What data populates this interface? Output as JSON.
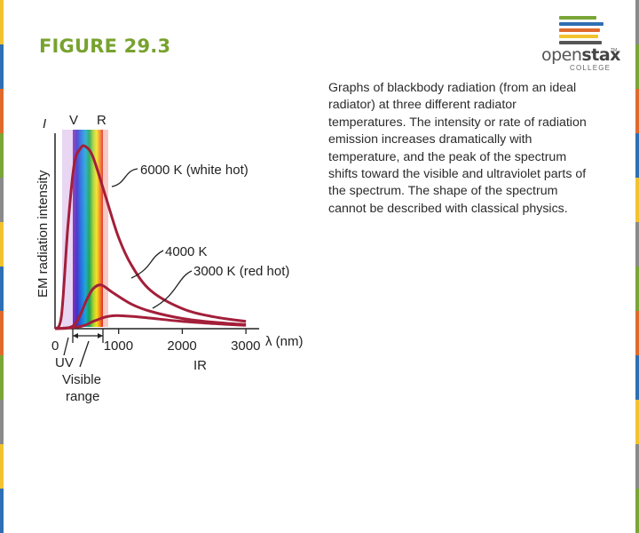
{
  "slide": {
    "title": "FIGURE 29.3",
    "caption": "Graphs of blackbody radiation (from an ideal radiator) at three different radiator temperatures. The intensity or rate of radiation emission increases dramatically with temperature, and the peak of the spectrum shifts toward the visible and ultraviolet parts of the spectrum. The shape of the spectrum cannot be described with classical physics.",
    "logo": {
      "word_regular": "open",
      "word_bold": "stax",
      "tm": "TM",
      "sub": "COLLEGE"
    }
  },
  "colors": {
    "title_green": "#78a22f",
    "curve": "#a31f3a",
    "edge_stripes": [
      "#f2c32e",
      "#2f6fb3",
      "#e06a2c",
      "#7aa637",
      "#8a8a8a"
    ],
    "logo_bars": [
      "#7aa637",
      "#2f6fb3",
      "#e06a2c",
      "#f2c32e",
      "#555555"
    ]
  },
  "chart_data": {
    "type": "line",
    "title": "",
    "ylabel": "EM radiation intensity",
    "y_symbol": "I",
    "xlabel": "λ (nm)",
    "xlim": [
      0,
      3000
    ],
    "x_ticks": [
      "0",
      "1000",
      "2000",
      "3000"
    ],
    "region_labels": {
      "violet": "V",
      "red": "R",
      "uv": "UV",
      "ir": "IR",
      "visible": "Visible\nrange"
    },
    "series": [
      {
        "name": "6000 K (white hot)",
        "x": [
          0,
          100,
          200,
          300,
          400,
          480,
          600,
          800,
          1000,
          1200,
          1500,
          2000,
          2500,
          3000
        ],
        "y": [
          0,
          0.07,
          0.55,
          0.9,
          0.99,
          1.0,
          0.94,
          0.72,
          0.5,
          0.35,
          0.21,
          0.11,
          0.065,
          0.04
        ]
      },
      {
        "name": "4000 K",
        "x": [
          0,
          300,
          500,
          600,
          725,
          900,
          1200,
          1500,
          2000,
          2500,
          3000
        ],
        "y": [
          0,
          0.02,
          0.16,
          0.22,
          0.24,
          0.2,
          0.135,
          0.095,
          0.056,
          0.035,
          0.023
        ]
      },
      {
        "name": "3000 K (red hot)",
        "x": [
          0,
          400,
          600,
          800,
          966,
          1200,
          1500,
          2000,
          2500,
          3000
        ],
        "y": [
          0,
          0.012,
          0.04,
          0.065,
          0.072,
          0.068,
          0.058,
          0.04,
          0.028,
          0.018
        ]
      }
    ]
  }
}
